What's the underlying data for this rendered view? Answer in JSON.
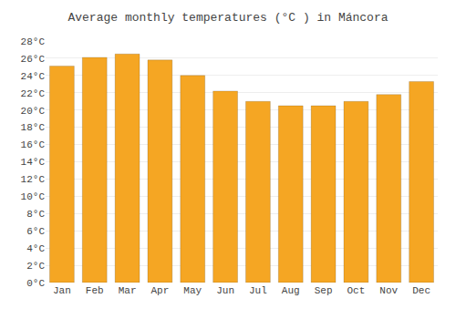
{
  "chart_data": {
    "type": "bar",
    "title": "Average monthly temperatures (°C ) in Máncora",
    "categories": [
      "Jan",
      "Feb",
      "Mar",
      "Apr",
      "May",
      "Jun",
      "Jul",
      "Aug",
      "Sep",
      "Oct",
      "Nov",
      "Dec"
    ],
    "values": [
      25.1,
      26.1,
      26.5,
      25.8,
      24.0,
      22.2,
      21.0,
      20.5,
      20.5,
      21.0,
      21.8,
      23.3
    ],
    "color": "#F5A623",
    "ylim": [
      0,
      28
    ],
    "yticks": [
      {
        "value": 0,
        "label": "0°C"
      },
      {
        "value": 2,
        "label": "2°C"
      },
      {
        "value": 4,
        "label": "4°C"
      },
      {
        "value": 6,
        "label": "6°C"
      },
      {
        "value": 8,
        "label": "8°C"
      },
      {
        "value": 10,
        "label": "10°C"
      },
      {
        "value": 12,
        "label": "12°C"
      },
      {
        "value": 14,
        "label": "14°C"
      },
      {
        "value": 16,
        "label": "16°C"
      },
      {
        "value": 18,
        "label": "18°C"
      },
      {
        "value": 20,
        "label": "20°C"
      },
      {
        "value": 22,
        "label": "22°C"
      },
      {
        "value": 24,
        "label": "24°C"
      },
      {
        "value": 26,
        "label": "26°C"
      },
      {
        "value": 28,
        "label": "28°C"
      }
    ],
    "grid": true
  }
}
